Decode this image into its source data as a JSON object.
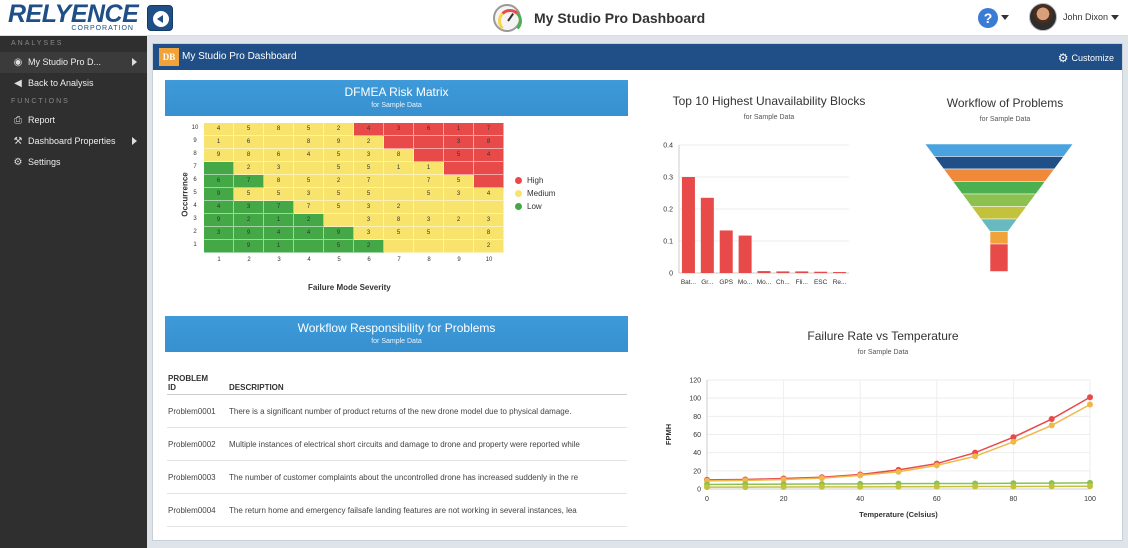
{
  "header": {
    "logo_brand": "RELYENCE",
    "logo_sub": "CORPORATION",
    "title": "My Studio Pro Dashboard",
    "help_label": "?",
    "user_name": "John Dixon"
  },
  "sidebar": {
    "analyses_label": "ANALYSES",
    "functions_label": "FUNCTIONS",
    "analyses_items": [
      {
        "label": "My Studio Pro D...",
        "icon": "dashboard-icon"
      },
      {
        "label": "Back to Analysis",
        "icon": "caret-left-icon"
      }
    ],
    "function_items": [
      {
        "label": "Report",
        "icon": "printer-icon"
      },
      {
        "label": "Dashboard Properties",
        "icon": "wrench-icon"
      },
      {
        "label": "Settings",
        "icon": "gear-icon"
      }
    ]
  },
  "dashboard": {
    "badge": "DB",
    "title": "My Studio Pro Dashboard",
    "customize_label": "Customize"
  },
  "colors": {
    "accent": "#1f4f86",
    "panel_header": "#3e9ad9",
    "high": "#e84a4a",
    "medium": "#f8e36c",
    "low": "#44a847"
  },
  "dfmea": {
    "title": "DFMEA Risk Matrix",
    "subtitle": "for Sample Data",
    "xlabel": "Failure Mode Severity",
    "ylabel": "Occurrence",
    "legend": [
      "High",
      "Medium",
      "Low"
    ],
    "rows": [
      {
        "occ": "10",
        "cells": [
          [
            "4",
            "M"
          ],
          [
            "5",
            "M"
          ],
          [
            "8",
            "M"
          ],
          [
            "5",
            "M"
          ],
          [
            "2",
            "M"
          ],
          [
            "4",
            "H"
          ],
          [
            "3",
            "H"
          ],
          [
            "6",
            "H"
          ],
          [
            "1",
            "H"
          ],
          [
            "7",
            "H"
          ]
        ]
      },
      {
        "occ": "9",
        "cells": [
          [
            "1",
            "M"
          ],
          [
            "6",
            "M"
          ],
          [
            "",
            "M"
          ],
          [
            "8",
            "M"
          ],
          [
            "9",
            "M"
          ],
          [
            "2",
            "M"
          ],
          [
            "",
            "H"
          ],
          [
            "",
            "H"
          ],
          [
            "3",
            "H"
          ],
          [
            "8",
            "H"
          ]
        ]
      },
      {
        "occ": "8",
        "cells": [
          [
            "9",
            "M"
          ],
          [
            "8",
            "M"
          ],
          [
            "6",
            "M"
          ],
          [
            "4",
            "M"
          ],
          [
            "5",
            "M"
          ],
          [
            "3",
            "M"
          ],
          [
            "8",
            "M"
          ],
          [
            "",
            "H"
          ],
          [
            "5",
            "H"
          ],
          [
            "4",
            "H"
          ]
        ]
      },
      {
        "occ": "7",
        "cells": [
          [
            "",
            "L"
          ],
          [
            "2",
            "M"
          ],
          [
            "3",
            "M"
          ],
          [
            "",
            "M"
          ],
          [
            "5",
            "M"
          ],
          [
            "5",
            "M"
          ],
          [
            "1",
            "M"
          ],
          [
            "1",
            "M"
          ],
          [
            "",
            "H"
          ],
          [
            "",
            "H"
          ]
        ]
      },
      {
        "occ": "6",
        "cells": [
          [
            "6",
            "L"
          ],
          [
            "7",
            "L"
          ],
          [
            "8",
            "M"
          ],
          [
            "5",
            "M"
          ],
          [
            "2",
            "M"
          ],
          [
            "7",
            "M"
          ],
          [
            "",
            "M"
          ],
          [
            "7",
            "M"
          ],
          [
            "5",
            "M"
          ],
          [
            "",
            "H"
          ]
        ]
      },
      {
        "occ": "5",
        "cells": [
          [
            "9",
            "L"
          ],
          [
            "5",
            "M"
          ],
          [
            "5",
            "M"
          ],
          [
            "3",
            "M"
          ],
          [
            "5",
            "M"
          ],
          [
            "5",
            "M"
          ],
          [
            "",
            "M"
          ],
          [
            "5",
            "M"
          ],
          [
            "3",
            "M"
          ],
          [
            "4",
            "M"
          ]
        ]
      },
      {
        "occ": "4",
        "cells": [
          [
            "4",
            "L"
          ],
          [
            "3",
            "L"
          ],
          [
            "7",
            "L"
          ],
          [
            "7",
            "M"
          ],
          [
            "5",
            "M"
          ],
          [
            "3",
            "M"
          ],
          [
            "2",
            "M"
          ],
          [
            "",
            "M"
          ],
          [
            "",
            "M"
          ],
          [
            "",
            "M"
          ]
        ]
      },
      {
        "occ": "3",
        "cells": [
          [
            "9",
            "L"
          ],
          [
            "2",
            "L"
          ],
          [
            "1",
            "L"
          ],
          [
            "2",
            "L"
          ],
          [
            "",
            "M"
          ],
          [
            "3",
            "M"
          ],
          [
            "8",
            "M"
          ],
          [
            "3",
            "M"
          ],
          [
            "2",
            "M"
          ],
          [
            "3",
            "M"
          ]
        ]
      },
      {
        "occ": "2",
        "cells": [
          [
            "3",
            "L"
          ],
          [
            "9",
            "L"
          ],
          [
            "4",
            "L"
          ],
          [
            "4",
            "L"
          ],
          [
            "9",
            "L"
          ],
          [
            "3",
            "M"
          ],
          [
            "5",
            "M"
          ],
          [
            "5",
            "M"
          ],
          [
            "",
            "M"
          ],
          [
            "8",
            "M"
          ]
        ]
      },
      {
        "occ": "1",
        "cells": [
          [
            "",
            "L"
          ],
          [
            "9",
            "L"
          ],
          [
            "1",
            "L"
          ],
          [
            "",
            "L"
          ],
          [
            "5",
            "L"
          ],
          [
            "2",
            "L"
          ],
          [
            "",
            "M"
          ],
          [
            "",
            "M"
          ],
          [
            "",
            "M"
          ],
          [
            "2",
            "M"
          ]
        ]
      }
    ],
    "severity_ticks": [
      "1",
      "2",
      "3",
      "4",
      "5",
      "6",
      "7",
      "8",
      "9",
      "10"
    ]
  },
  "unavailability": {
    "title": "Top 10 Highest Unavailability Blocks",
    "subtitle": "for Sample Data"
  },
  "funnel": {
    "title": "Workflow of Problems",
    "subtitle": "for Sample Data",
    "stage_colors": [
      "#4aa3df",
      "#1f4f86",
      "#f08a3a",
      "#4caf50",
      "#8cc152",
      "#c3c23c",
      "#68b9c0",
      "#f0a33a",
      "#e84a4a"
    ]
  },
  "responsibility": {
    "title": "Workflow Responsibility for Problems",
    "subtitle": "for Sample Data",
    "col_id_line1": "PROBLEM",
    "col_id_line2": "ID",
    "col_desc": "DESCRIPTION",
    "rows": [
      {
        "id": "Problem0001",
        "desc": "There is a significant number of product returns of the new drone model due to physical damage."
      },
      {
        "id": "Problem0002",
        "desc": "Multiple instances of electrical short circuits and damage to drone and property were reported while"
      },
      {
        "id": "Problem0003",
        "desc": "The number of customer complaints about the uncontrolled drone has increased suddenly in the re"
      },
      {
        "id": "Problem0004",
        "desc": "The return home and emergency failsafe landing features are not working in several instances, lea"
      }
    ]
  },
  "failure_rate": {
    "title": "Failure Rate vs Temperature",
    "subtitle": "for Sample Data"
  },
  "chart_data": [
    {
      "type": "bar",
      "title": "Top 10 Highest Unavailability Blocks",
      "subtitle": "for Sample Data",
      "categories": [
        "Bat...",
        "Gr...",
        "GPS",
        "Mo...",
        "Mo...",
        "Ch...",
        "Fli...",
        "ESC",
        "Re..."
      ],
      "values": [
        0.3,
        0.235,
        0.133,
        0.117,
        0.006,
        0.005,
        0.005,
        0.004,
        0.003
      ],
      "ylim": [
        0,
        0.4
      ],
      "yticks": [
        "0",
        "0.1",
        "0.2",
        "0.3",
        "0.4"
      ],
      "color": "#e84a4a"
    },
    {
      "type": "line",
      "title": "Failure Rate vs Temperature",
      "subtitle": "for Sample Data",
      "xlabel": "Temperature (Celsius)",
      "ylabel": "FPMH",
      "xlim": [
        0,
        100
      ],
      "ylim": [
        0,
        120
      ],
      "xticks": [
        "0",
        "20",
        "40",
        "60",
        "80",
        "100"
      ],
      "yticks": [
        "0",
        "20",
        "40",
        "60",
        "80",
        "100",
        "120"
      ],
      "x": [
        0,
        10,
        20,
        30,
        40,
        50,
        60,
        70,
        80,
        90,
        100
      ],
      "series": [
        {
          "color": "#e84a4a",
          "values": [
            10,
            10.5,
            11.5,
            13,
            16,
            21,
            28,
            40,
            57,
            77,
            101
          ]
        },
        {
          "color": "#f0b84a",
          "values": [
            9,
            9.5,
            10.5,
            12,
            15,
            19,
            26,
            36,
            52,
            70,
            93
          ]
        },
        {
          "color": "#8cc152",
          "values": [
            5,
            5.2,
            5.4,
            5.5,
            5.7,
            5.9,
            6,
            6.1,
            6.3,
            6.5,
            6.7
          ]
        },
        {
          "color": "#c3c23c",
          "values": [
            2,
            2.1,
            2.2,
            2.3,
            2.4,
            2.5,
            2.6,
            2.7,
            2.8,
            2.9,
            3
          ]
        }
      ]
    }
  ]
}
